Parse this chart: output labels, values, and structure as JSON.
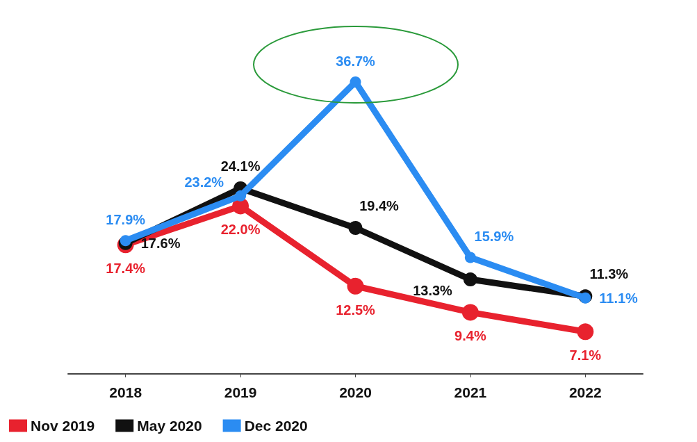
{
  "chart_data": {
    "type": "line",
    "categories": [
      "2018",
      "2019",
      "2020",
      "2021",
      "2022"
    ],
    "legend": "bottom left",
    "grid": false,
    "marker": "circle",
    "series": [
      {
        "name": "Nov 2019",
        "color": "#e8222e",
        "values": [
          17.4,
          22.0,
          12.5,
          9.4,
          7.1
        ],
        "value_labels": [
          "17.4%",
          "22.0%",
          "12.5%",
          "9.4%",
          "7.1%"
        ]
      },
      {
        "name": "May 2020",
        "color": "#111111",
        "values": [
          17.6,
          24.1,
          19.4,
          13.3,
          11.3
        ],
        "value_labels": [
          "17.6%",
          "24.1%",
          "19.4%",
          "13.3%",
          "11.3%"
        ]
      },
      {
        "name": "Dec 2020",
        "color": "#2b8cf2",
        "values": [
          17.9,
          23.2,
          36.7,
          15.9,
          11.1
        ],
        "value_labels": [
          "17.9%",
          "23.2%",
          "36.7%",
          "15.9%",
          "11.1%"
        ]
      }
    ]
  }
}
